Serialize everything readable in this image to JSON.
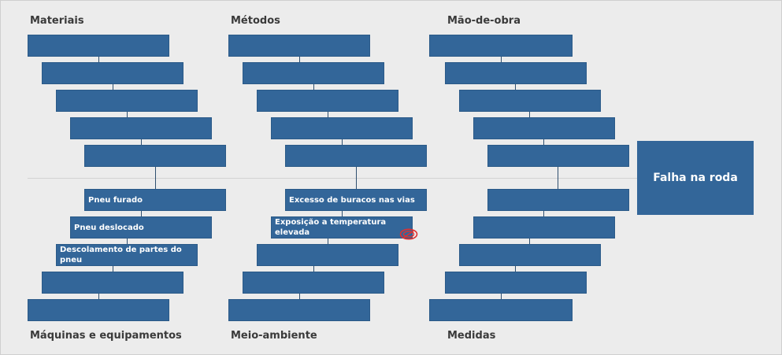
{
  "effect": {
    "label": "Falha na roda",
    "color": "#336699"
  },
  "categories": {
    "top": [
      "Materiais",
      "Métodos",
      "Mão-de-obra"
    ],
    "bottom": [
      "Máquinas e equipamentos",
      "Meio-ambiente",
      "Medidas"
    ]
  },
  "causes": {
    "materiais": [
      "",
      "",
      "",
      "",
      ""
    ],
    "metodos": [
      "",
      "",
      "",
      "",
      ""
    ],
    "mao_de_obra": [
      "",
      "",
      "",
      "",
      ""
    ],
    "maquinas": [
      "Pneu furado",
      "Pneu deslocado",
      "Descolamento de partes do pneu",
      "",
      ""
    ],
    "meio_ambiente": [
      "Excesso de buracos nas vias",
      "Exposição a temperatura elevada",
      "",
      "",
      ""
    ],
    "medidas": [
      "",
      "",
      "",
      "",
      ""
    ]
  },
  "icons": {
    "marker": "no-entry-icon"
  },
  "colors": {
    "box": "#336699",
    "background": "#ececec",
    "marker": "#e03030"
  }
}
